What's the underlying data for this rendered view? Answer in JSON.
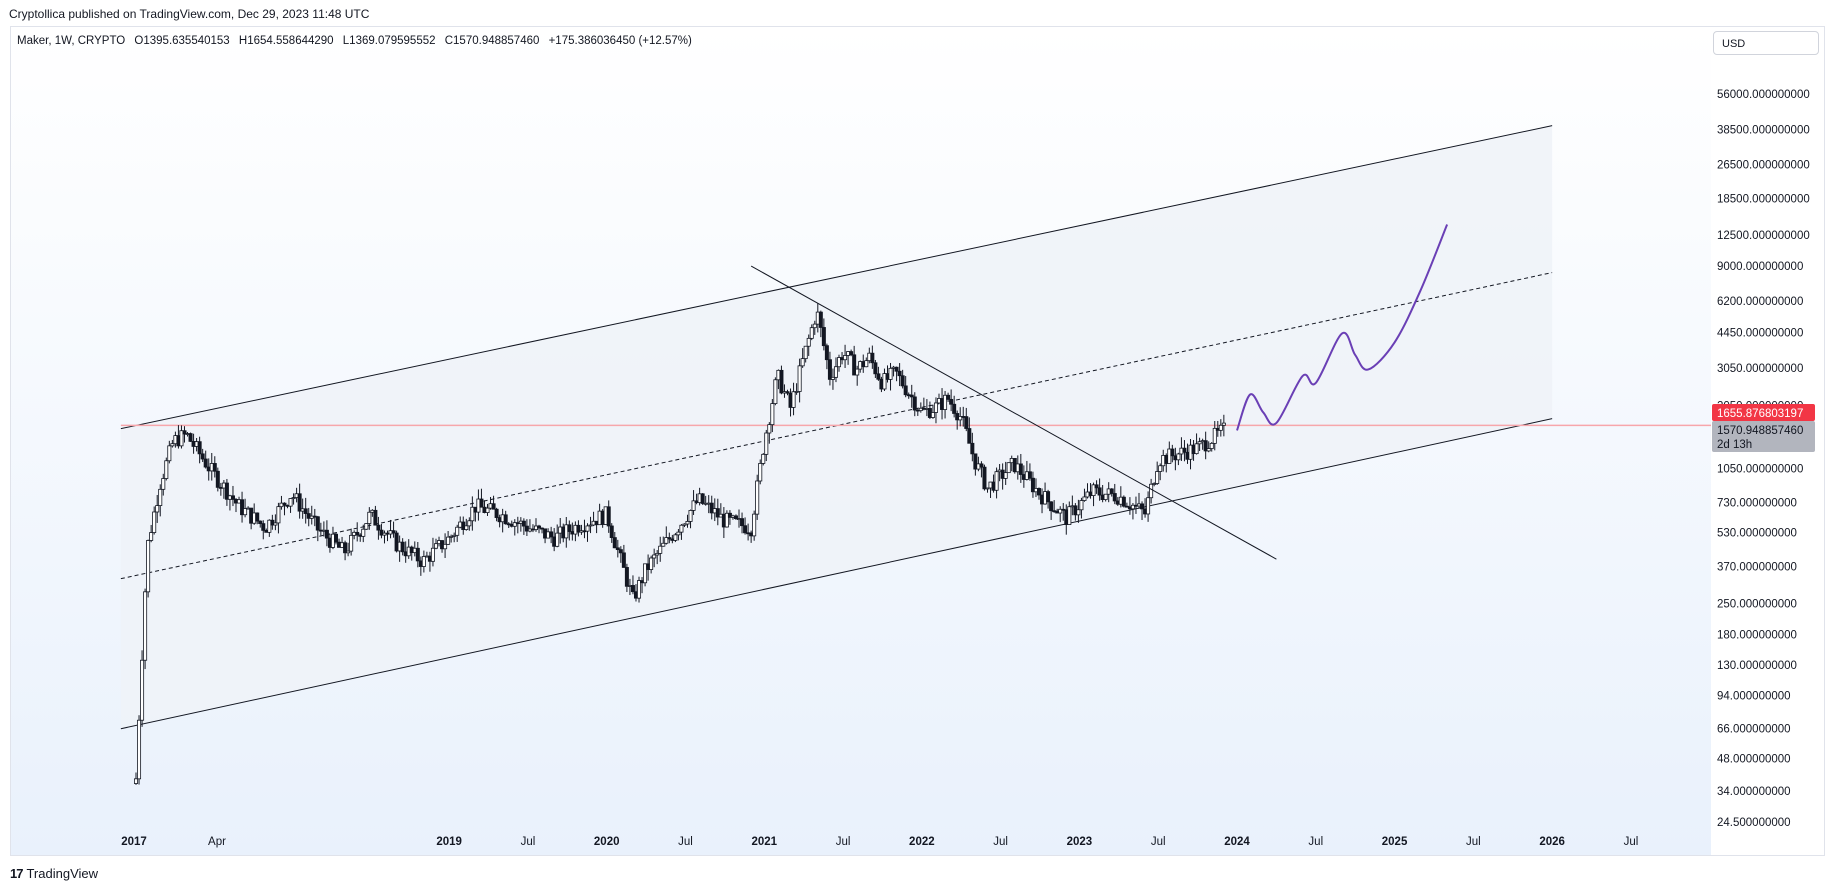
{
  "header": {
    "publisher_text": "Cryptollica published on TradingView.com, Dec 29, 2023 11:48 UTC"
  },
  "ohlc": {
    "symbol": "Maker, 1W, CRYPTO",
    "open": "O1395.635540153",
    "high": "H1654.558644290",
    "low": "L1369.079595552",
    "close": "C1570.948857460",
    "change": "+175.386036450 (+12.57%)"
  },
  "currency_button": "USD",
  "price_tags": {
    "alert_price": "1655.876803197",
    "last_price": "1570.948857460",
    "countdown": "2d 13h"
  },
  "footer": {
    "logo_mark": "17",
    "brand": "TradingView"
  },
  "colors": {
    "up_candle": "#ffffff",
    "down_candle": "#131722",
    "channel_fill": "#eef3fa",
    "horizontal_line": "#f7a6ab",
    "alert_tag": "#f23645",
    "last_tag": "#b2b5be",
    "projection": "#6a3fb5"
  },
  "chart_data": {
    "type": "candlestick",
    "title": "Maker, 1W, CRYPTO",
    "scale": "log",
    "ylim": [
      24.5,
      90000
    ],
    "y_ticks": [
      "56000.000000000",
      "38500.000000000",
      "26500.000000000",
      "18500.000000000",
      "12500.000000000",
      "9000.000000000",
      "6200.000000000",
      "4450.000000000",
      "3050.000000000",
      "2050.000000000",
      "1050.000000000",
      "730.000000000",
      "530.000000000",
      "370.000000000",
      "250.000000000",
      "180.000000000",
      "130.000000000",
      "94.000000000",
      "66.000000000",
      "48.000000000",
      "34.000000000",
      "24.500000000"
    ],
    "x_ticks": [
      {
        "label": "2017",
        "year": true
      },
      {
        "label": "Apr",
        "year": false
      },
      {
        "label": "2019",
        "year": true
      },
      {
        "label": "Jul",
        "year": false
      },
      {
        "label": "2020",
        "year": true
      },
      {
        "label": "Jul",
        "year": false
      },
      {
        "label": "2021",
        "year": true
      },
      {
        "label": "Jul",
        "year": false
      },
      {
        "label": "2022",
        "year": true
      },
      {
        "label": "Jul",
        "year": false
      },
      {
        "label": "2023",
        "year": true
      },
      {
        "label": "Jul",
        "year": false
      },
      {
        "label": "2024",
        "year": true
      },
      {
        "label": "Jul",
        "year": false
      },
      {
        "label": "2025",
        "year": true
      },
      {
        "label": "Jul",
        "year": false
      },
      {
        "label": "2026",
        "year": true
      },
      {
        "label": "Jul",
        "year": false
      }
    ],
    "price_path": [
      [
        "2017-01",
        25
      ],
      [
        "2017-02",
        450
      ],
      [
        "2017-03",
        900
      ],
      [
        "2017-04",
        1400
      ],
      [
        "2017-05",
        1500
      ],
      [
        "2017-07",
        1000
      ],
      [
        "2017-09",
        700
      ],
      [
        "2017-11",
        560
      ],
      [
        "2018-01",
        800
      ],
      [
        "2018-03",
        550
      ],
      [
        "2018-05",
        430
      ],
      [
        "2018-07",
        640
      ],
      [
        "2018-09",
        470
      ],
      [
        "2018-11",
        390
      ],
      [
        "2019-01",
        500
      ],
      [
        "2019-03",
        700
      ],
      [
        "2019-05",
        640
      ],
      [
        "2019-07",
        560
      ],
      [
        "2019-09",
        500
      ],
      [
        "2019-11",
        580
      ],
      [
        "2020-01",
        640
      ],
      [
        "2020-03",
        260
      ],
      [
        "2020-04",
        360
      ],
      [
        "2020-06",
        520
      ],
      [
        "2020-08",
        750
      ],
      [
        "2020-10",
        600
      ],
      [
        "2020-12",
        560
      ],
      [
        "2021-01",
        1400
      ],
      [
        "2021-02",
        2800
      ],
      [
        "2021-03",
        2000
      ],
      [
        "2021-04",
        3400
      ],
      [
        "2021-05",
        5600
      ],
      [
        "2021-06",
        2800
      ],
      [
        "2021-07",
        3600
      ],
      [
        "2021-08",
        3000
      ],
      [
        "2021-09",
        3400
      ],
      [
        "2021-10",
        2600
      ],
      [
        "2021-11",
        2900
      ],
      [
        "2022-01",
        1900
      ],
      [
        "2022-02",
        2000
      ],
      [
        "2022-03",
        2200
      ],
      [
        "2022-04",
        1800
      ],
      [
        "2022-05",
        1150
      ],
      [
        "2022-06",
        850
      ],
      [
        "2022-08",
        1100
      ],
      [
        "2022-10",
        800
      ],
      [
        "2022-12",
        620
      ],
      [
        "2023-02",
        820
      ],
      [
        "2023-04",
        780
      ],
      [
        "2023-06",
        650
      ],
      [
        "2023-07",
        1150
      ],
      [
        "2023-08",
        1200
      ],
      [
        "2023-10",
        1300
      ],
      [
        "2023-12",
        1570
      ]
    ],
    "channel": {
      "upper": [
        [
          "2016-12",
          1600
        ],
        [
          "2026-01",
          40000
        ]
      ],
      "lower": [
        [
          "2016-12",
          66
        ],
        [
          "2026-01",
          1780
        ]
      ],
      "midline": [
        [
          "2016-12",
          325
        ],
        [
          "2026-01",
          8400
        ]
      ]
    },
    "descending_trendline": [
      [
        "2020-12",
        9000
      ],
      [
        "2024-04",
        400
      ]
    ],
    "horizontal_level": 1655.876803197,
    "projection_path": [
      [
        "2024-01",
        1570
      ],
      [
        "2024-02",
        2300
      ],
      [
        "2024-03",
        1900
      ],
      [
        "2024-04",
        1700
      ],
      [
        "2024-06",
        2800
      ],
      [
        "2024-07",
        2600
      ],
      [
        "2024-09",
        4400
      ],
      [
        "2024-10",
        3500
      ],
      [
        "2024-11",
        3000
      ],
      [
        "2025-01",
        4000
      ],
      [
        "2025-03",
        7000
      ],
      [
        "2025-05",
        14000
      ]
    ]
  }
}
